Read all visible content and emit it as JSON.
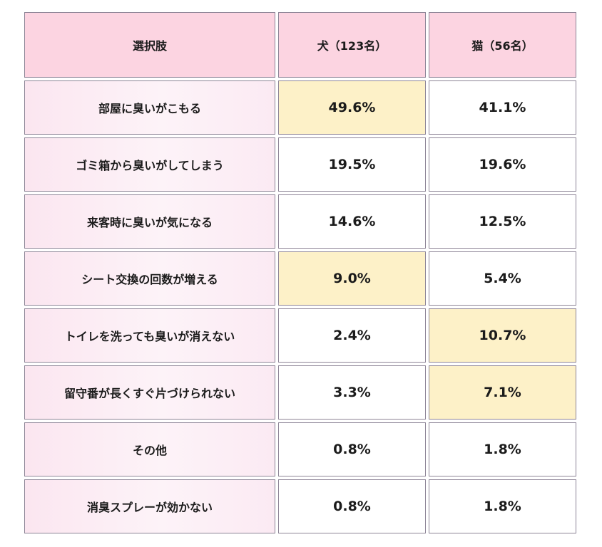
{
  "chart_data": {
    "type": "table",
    "columns": [
      "選択肢",
      "犬（123名）",
      "猫（56名）"
    ],
    "rows": [
      {
        "label": "部屋に臭いがこもる",
        "dog": "49.6%",
        "cat": "41.1%",
        "highlight": [
          "dog"
        ]
      },
      {
        "label": "ゴミ箱から臭いがしてしまう",
        "dog": "19.5%",
        "cat": "19.6%",
        "highlight": []
      },
      {
        "label": "来客時に臭いが気になる",
        "dog": "14.6%",
        "cat": "12.5%",
        "highlight": []
      },
      {
        "label": "シート交換の回数が増える",
        "dog": "9.0%",
        "cat": "5.4%",
        "highlight": [
          "dog"
        ]
      },
      {
        "label": "トイレを洗っても臭いが消えない",
        "dog": "2.4%",
        "cat": "10.7%",
        "highlight": [
          "cat"
        ]
      },
      {
        "label": "留守番が長くすぐ片づけられない",
        "dog": "3.3%",
        "cat": "7.1%",
        "highlight": [
          "cat"
        ]
      },
      {
        "label": "その他",
        "dog": "0.8%",
        "cat": "1.8%",
        "highlight": []
      },
      {
        "label": "消臭スプレーが効かない",
        "dog": "0.8%",
        "cat": "1.8%",
        "highlight": []
      }
    ],
    "colors": {
      "header_bg": "#fcd4e1",
      "highlight_bg": "#fdf1c8",
      "border": "#8d8496"
    }
  }
}
